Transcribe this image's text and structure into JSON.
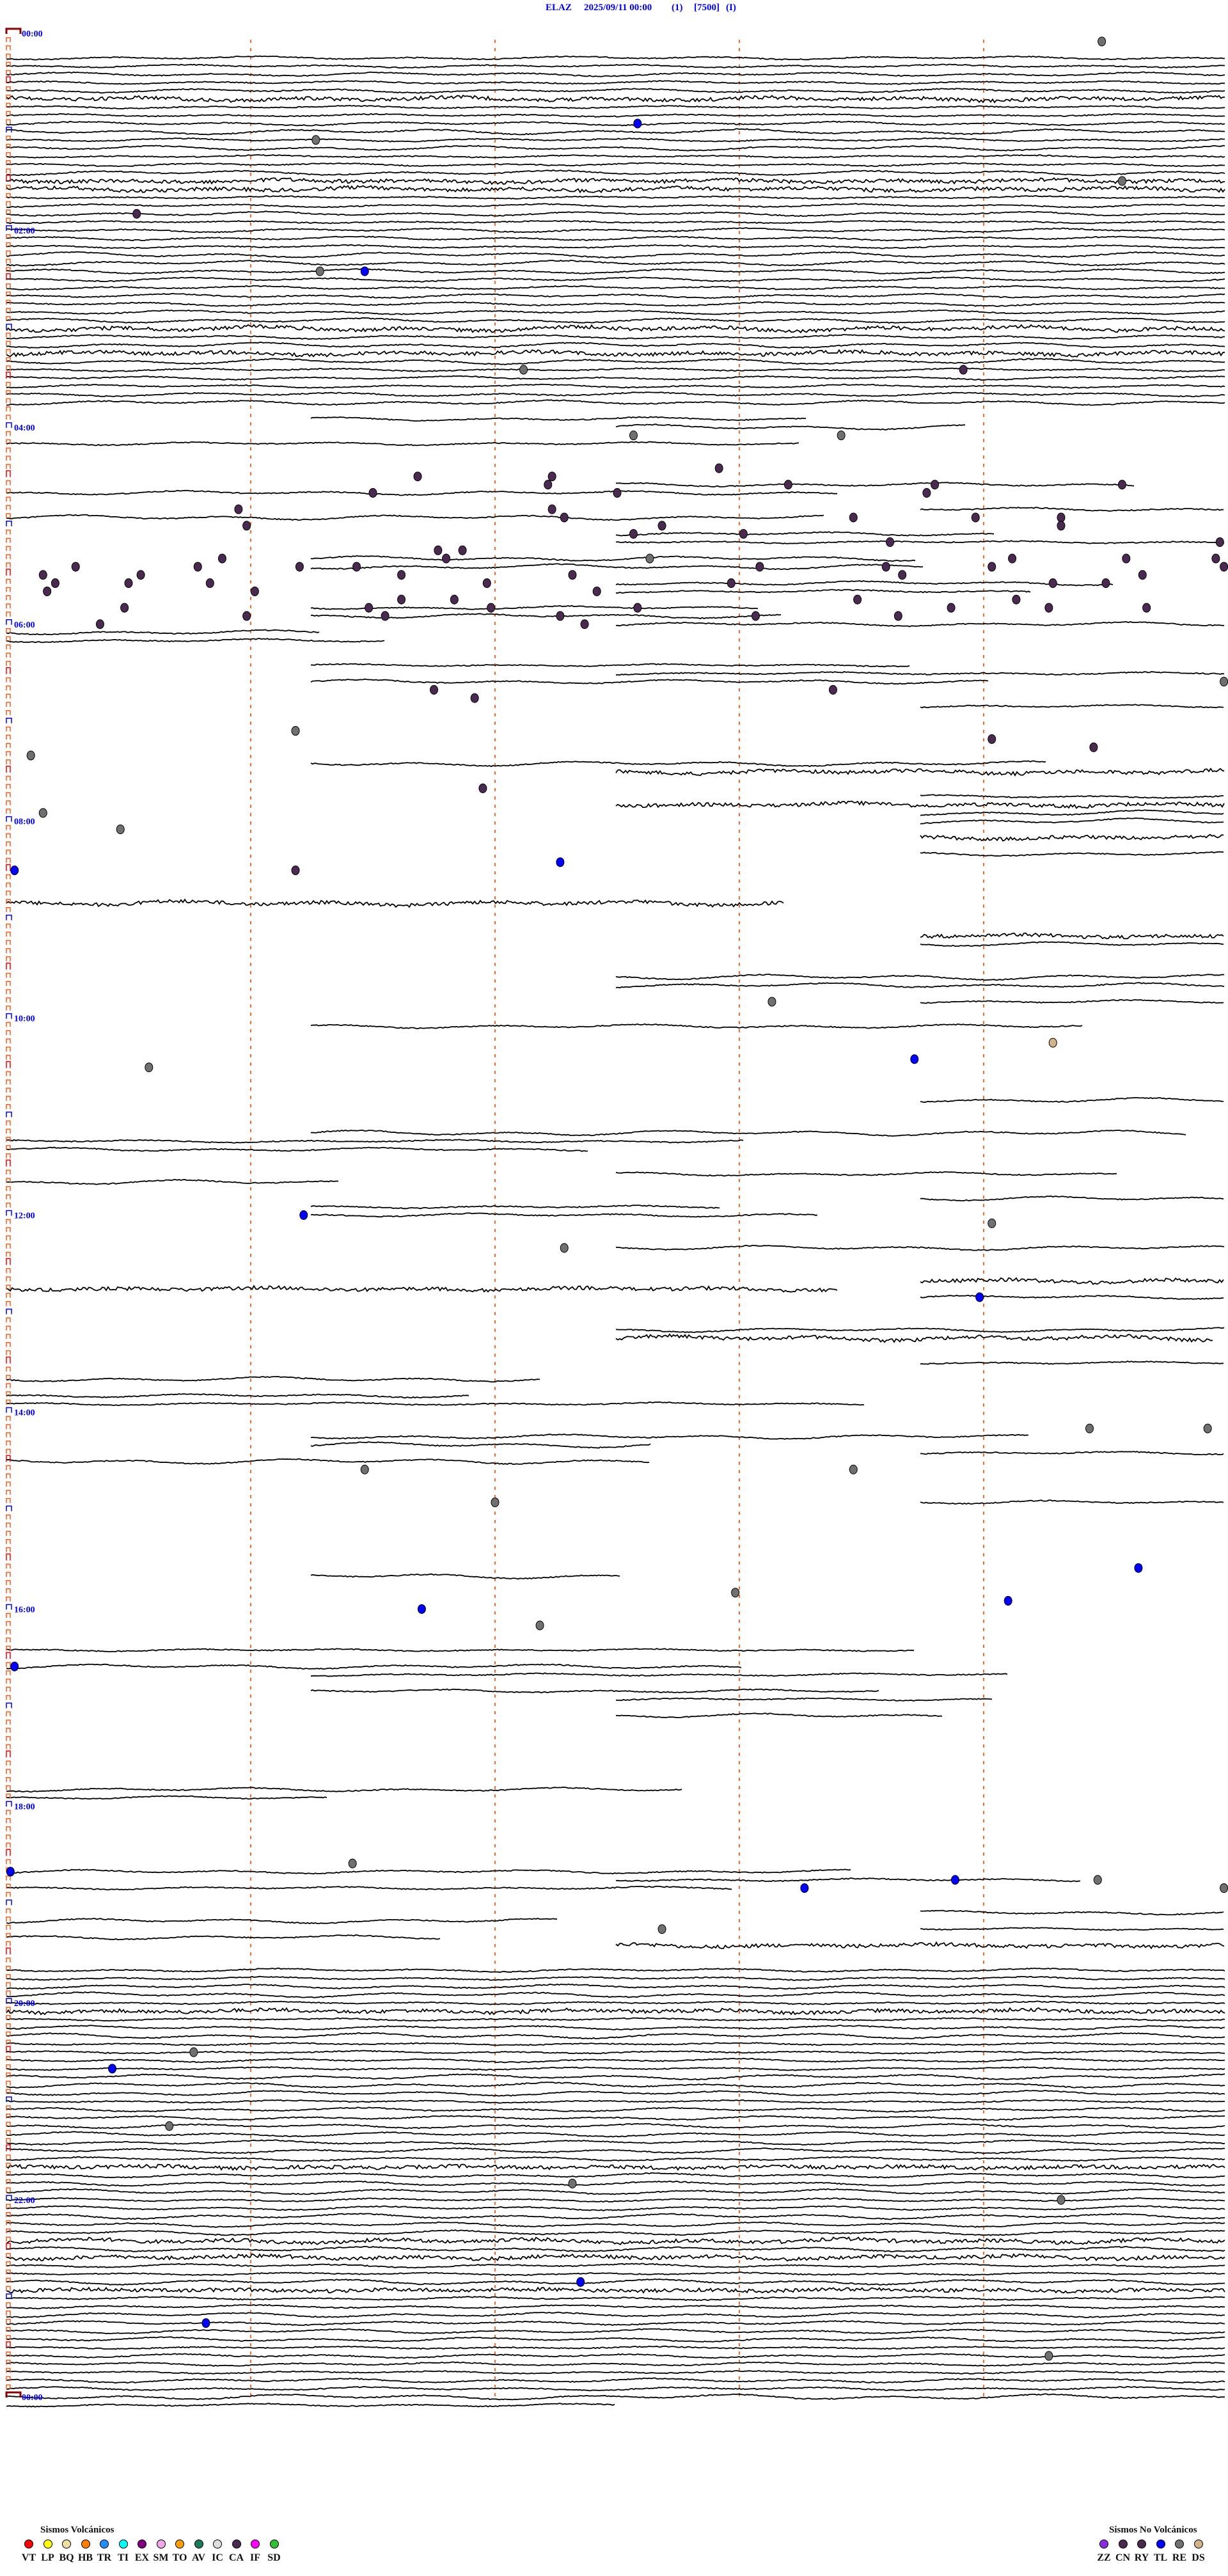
{
  "header": {
    "station": "ELAZ",
    "datetime": "2025/09/11 00:00",
    "channel": "(1)",
    "scale": "[7500]",
    "mode": "(I)"
  },
  "chart_data": {
    "type": "helicorder",
    "start": "2025/09/11 00:00",
    "row_minutes": 5,
    "time_labels": [
      "00:00",
      "02:00",
      "04:00",
      "06:00",
      "08:00",
      "10:00",
      "12:00",
      "14:00",
      "16:00",
      "18:00",
      "20:00",
      "22:00",
      "00:00"
    ],
    "minute_gridlines": [
      1,
      2,
      3,
      4
    ],
    "events": [
      {
        "t": "00:09:29",
        "type": "RE"
      },
      {
        "t": "00:57:35",
        "type": "TL"
      },
      {
        "t": "01:06:16",
        "type": "RE"
      },
      {
        "t": "01:34:34",
        "type": "RE"
      },
      {
        "t": "01:50:32",
        "type": "CA"
      },
      {
        "t": "02:26:17",
        "type": "RE"
      },
      {
        "t": "02:26:28",
        "type": "TL"
      },
      {
        "t": "03:27:07",
        "type": "RE"
      },
      {
        "t": "03:28:55",
        "type": "CA"
      },
      {
        "t": "04:07:34",
        "type": "RE"
      },
      {
        "t": "04:08:25",
        "type": "RE"
      },
      {
        "t": "04:27:55",
        "type": "CA"
      },
      {
        "t": "04:31:41",
        "type": "CA"
      },
      {
        "t": "04:32:14",
        "type": "CA"
      },
      {
        "t": "04:37:13",
        "type": "CA"
      },
      {
        "t": "04:41:30",
        "type": "CA"
      },
      {
        "t": "04:38:12",
        "type": "CA"
      },
      {
        "t": "04:42:30",
        "type": "CA"
      },
      {
        "t": "04:50:57",
        "type": "CA"
      },
      {
        "t": "04:43:46",
        "type": "CA"
      },
      {
        "t": "04:38:48",
        "type": "CA"
      },
      {
        "t": "04:39:34",
        "type": "CA"
      },
      {
        "t": "04:59:19",
        "type": "CA"
      },
      {
        "t": "05:04:19",
        "type": "CA"
      },
      {
        "t": "04:58:58",
        "type": "CA"
      },
      {
        "t": "04:58:28",
        "type": "CA"
      },
      {
        "t": "04:52:14",
        "type": "CA"
      },
      {
        "t": "04:57:17",
        "type": "CA"
      },
      {
        "t": "05:07:34",
        "type": "CA"
      },
      {
        "t": "05:02:41",
        "type": "CA"
      },
      {
        "t": "05:08:01",
        "type": "CA"
      },
      {
        "t": "05:00:59",
        "type": "CA"
      },
      {
        "t": "05:20:53",
        "type": "CA"
      },
      {
        "t": "05:25:47",
        "type": "CA"
      },
      {
        "t": "05:25:17",
        "type": "CA"
      },
      {
        "t": "05:30:09",
        "type": "CA"
      },
      {
        "t": "05:35:12",
        "type": "CA"
      },
      {
        "t": "05:40:10",
        "type": "CA"
      },
      {
        "t": "05:35:30",
        "type": "CA"
      },
      {
        "t": "05:30:33",
        "type": "CA"
      },
      {
        "t": "05:35:50",
        "type": "CA"
      },
      {
        "t": "05:41:01",
        "type": "CA"
      },
      {
        "t": "05:26:12",
        "type": "CA"
      },
      {
        "t": "05:26:26",
        "type": "CA"
      },
      {
        "t": "05:31:37",
        "type": "CA"
      },
      {
        "t": "05:16:46",
        "type": "CA"
      },
      {
        "t": "05:21:48",
        "type": "CA"
      },
      {
        "t": "05:16:52",
        "type": "CA"
      },
      {
        "t": "05:36:58",
        "type": "CA"
      },
      {
        "t": "05:46:50",
        "type": "CA"
      },
      {
        "t": "05:46:37",
        "type": "CA"
      },
      {
        "t": "05:51:29",
        "type": "CA"
      },
      {
        "t": "05:56:33",
        "type": "CA"
      },
      {
        "t": "05:51:59",
        "type": "CA"
      },
      {
        "t": "05:32:19",
        "type": "CA"
      },
      {
        "t": "05:42:25",
        "type": "CA"
      },
      {
        "t": "05:57:16",
        "type": "CA"
      },
      {
        "t": "06:02:22",
        "type": "CA"
      },
      {
        "t": "05:52:35",
        "type": "CA"
      },
      {
        "t": "05:22:38",
        "type": "RE"
      },
      {
        "t": "05:37:58",
        "type": "CA"
      },
      {
        "t": "05:28:05",
        "type": "CA"
      },
      {
        "t": "05:48:29",
        "type": "CA"
      },
      {
        "t": "05:28:36",
        "type": "CA"
      },
      {
        "t": "05:13:37",
        "type": "CA"
      },
      {
        "t": "05:33:40",
        "type": "CA"
      },
      {
        "t": "05:53:52",
        "type": "CA"
      },
      {
        "t": "05:49:08",
        "type": "CA"
      },
      {
        "t": "05:24:07",
        "type": "CA"
      },
      {
        "t": "05:29:02",
        "type": "CA"
      },
      {
        "t": "05:24:35",
        "type": "CA"
      },
      {
        "t": "05:34:39",
        "type": "CA"
      },
      {
        "t": "05:39:30",
        "type": "CA"
      },
      {
        "t": "05:39:17",
        "type": "CA"
      },
      {
        "t": "05:54:16",
        "type": "CA"
      },
      {
        "t": "05:54:40",
        "type": "CA"
      },
      {
        "t": "05:14:58",
        "type": "CA"
      },
      {
        "t": "05:24:57",
        "type": "CA"
      },
      {
        "t": "05:29:59",
        "type": "CA"
      },
      {
        "t": "06:00:23",
        "type": "CA"
      },
      {
        "t": "05:50:29",
        "type": "CA"
      },
      {
        "t": "05:55:59",
        "type": "CA"
      },
      {
        "t": "05:58:04",
        "type": "CA"
      },
      {
        "t": "05:58:39",
        "type": "CA"
      },
      {
        "t": "06:43:23",
        "type": "CA"
      },
      {
        "t": "06:41:45",
        "type": "CA"
      },
      {
        "t": "06:46:55",
        "type": "CA"
      },
      {
        "t": "07:14:02",
        "type": "CA"
      },
      {
        "t": "07:19:27",
        "type": "CA"
      },
      {
        "t": "07:41:57",
        "type": "CA"
      },
      {
        "t": "06:39:59",
        "type": "RE"
      },
      {
        "t": "07:06:11",
        "type": "RE"
      },
      {
        "t": "07:20:06",
        "type": "RE"
      },
      {
        "t": "07:55:09",
        "type": "RE"
      },
      {
        "t": "08:05:28",
        "type": "RE"
      },
      {
        "t": "08:30:02",
        "type": "TL"
      },
      {
        "t": "08:31:11",
        "type": "CA"
      },
      {
        "t": "08:27:16",
        "type": "TL"
      },
      {
        "t": "09:53:08",
        "type": "RE"
      },
      {
        "t": "10:19:17",
        "type": "DS"
      },
      {
        "t": "10:28:43",
        "type": "TL"
      },
      {
        "t": "10:30:35",
        "type": "RE"
      },
      {
        "t": "12:01:13",
        "type": "TL"
      },
      {
        "t": "12:09:02",
        "type": "RE"
      },
      {
        "t": "12:22:17",
        "type": "RE"
      },
      {
        "t": "12:53:59",
        "type": "TL"
      },
      {
        "t": "14:14:26",
        "type": "RE"
      },
      {
        "t": "14:14:55",
        "type": "RE"
      },
      {
        "t": "14:36:28",
        "type": "RE"
      },
      {
        "t": "14:38:28",
        "type": "RE"
      },
      {
        "t": "14:57:00",
        "type": "RE"
      },
      {
        "t": "15:39:38",
        "type": "TL"
      },
      {
        "t": "15:59:06",
        "type": "TL"
      },
      {
        "t": "15:52:59",
        "type": "RE"
      },
      {
        "t": "16:01:42",
        "type": "TL"
      },
      {
        "t": "16:12:11",
        "type": "RE"
      },
      {
        "t": "16:35:02",
        "type": "TL"
      },
      {
        "t": "18:40:01",
        "type": "TL"
      },
      {
        "t": "18:36:25",
        "type": "RE"
      },
      {
        "t": "18:53:16",
        "type": "TL"
      },
      {
        "t": "18:48:53",
        "type": "TL"
      },
      {
        "t": "18:49:28",
        "type": "RE"
      },
      {
        "t": "18:54:59",
        "type": "RE"
      },
      {
        "t": "19:17:41",
        "type": "RE"
      },
      {
        "t": "20:30:46",
        "type": "RE"
      },
      {
        "t": "20:40:26",
        "type": "TL"
      },
      {
        "t": "21:15:40",
        "type": "RE"
      },
      {
        "t": "21:52:19",
        "type": "RE"
      },
      {
        "t": "22:04:19",
        "type": "RE"
      },
      {
        "t": "22:52:21",
        "type": "TL"
      },
      {
        "t": "23:15:49",
        "type": "TL"
      },
      {
        "t": "23:39:16",
        "type": "RE"
      }
    ]
  },
  "legend": {
    "volcanic": {
      "title": "Sismos Volcánicos",
      "items": [
        {
          "code": "VT",
          "color": "#ff0000"
        },
        {
          "code": "LP",
          "color": "#ffff00"
        },
        {
          "code": "BQ",
          "color": "#f0e0a0"
        },
        {
          "code": "HB",
          "color": "#ff8000"
        },
        {
          "code": "TR",
          "color": "#1e90ff"
        },
        {
          "code": "TI",
          "color": "#00ffff"
        },
        {
          "code": "EX",
          "color": "#800080"
        },
        {
          "code": "SM",
          "color": "#f0a8e8"
        },
        {
          "code": "TO",
          "color": "#ffa000"
        },
        {
          "code": "AV",
          "color": "#1a7a5a"
        },
        {
          "code": "IC",
          "color": "#dddddd"
        },
        {
          "code": "CA",
          "color": "#4a2a50"
        },
        {
          "code": "IF",
          "color": "#ff00ff"
        },
        {
          "code": "SD",
          "color": "#30c030"
        }
      ]
    },
    "non_volcanic": {
      "title": "Sismos No Volcánicos",
      "items": [
        {
          "code": "ZZ",
          "color": "#8a2be2"
        },
        {
          "code": "CN",
          "color": "#4a2a50"
        },
        {
          "code": "RY",
          "color": "#4a2a50"
        },
        {
          "code": "TL",
          "color": "#0000ff"
        },
        {
          "code": "RE",
          "color": "#707070"
        },
        {
          "code": "DS",
          "color": "#d2b48c"
        }
      ]
    }
  }
}
